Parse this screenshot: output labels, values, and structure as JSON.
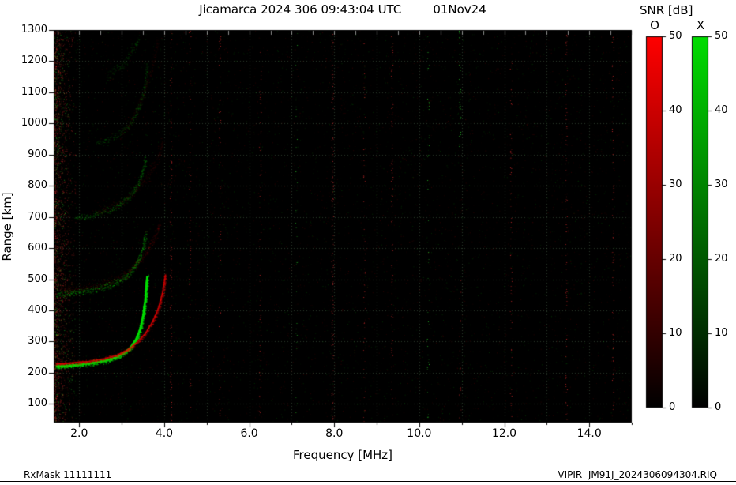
{
  "figure": {
    "title": "Jicamarca 2024 306 09:43:04 UTC",
    "date": "01Nov24",
    "footer_left": "RxMask 11111111",
    "footer_right": "VIPIR  JM91J_2024306094304.RIQ"
  },
  "chart_data": {
    "type": "heatmap",
    "title": "Jicamarca 2024 306 09:43:04 UTC 01Nov24",
    "xlabel": "Frequency [MHz]",
    "ylabel": "Range [km]",
    "xlim": [
      1.4,
      15.0
    ],
    "ylim": [
      40,
      1300
    ],
    "xtick_values": [
      2,
      4,
      6,
      8,
      10,
      12,
      14
    ],
    "xtick_labels": [
      "2.0",
      "4.0",
      "6.0",
      "8.0",
      "10.0",
      "12.0",
      "14.0"
    ],
    "yticks": [
      100,
      200,
      300,
      400,
      500,
      600,
      700,
      800,
      900,
      1000,
      1100,
      1200,
      1300
    ],
    "grid": true,
    "plot_background": "#000000",
    "colorbar_title": "SNR [dB]",
    "colorbar_ticks": [
      0,
      10,
      20,
      30,
      40,
      50
    ],
    "colorbars": [
      {
        "label": "O",
        "top_color": "#ff0000",
        "range": [
          0,
          50
        ]
      },
      {
        "label": "X",
        "top_color": "#00dd00",
        "range": [
          0,
          50
        ]
      }
    ],
    "series": [
      {
        "name": "X-mode 1st hop",
        "mode": "X",
        "color": "#00e000",
        "alpha": 0.9,
        "spread_km": 10,
        "density": 6,
        "core": true,
        "core_width": 2.4,
        "points": [
          [
            1.45,
            220
          ],
          [
            1.7,
            222
          ],
          [
            2.0,
            226
          ],
          [
            2.3,
            231
          ],
          [
            2.6,
            238
          ],
          [
            2.85,
            248
          ],
          [
            3.05,
            262
          ],
          [
            3.2,
            280
          ],
          [
            3.33,
            305
          ],
          [
            3.43,
            338
          ],
          [
            3.5,
            380
          ],
          [
            3.55,
            430
          ],
          [
            3.58,
            480
          ],
          [
            3.6,
            510
          ]
        ]
      },
      {
        "name": "O-mode 1st hop",
        "mode": "O",
        "color": "#e80000",
        "alpha": 0.6,
        "spread_km": 8,
        "density": 4,
        "core": true,
        "core_width": 1.6,
        "points": [
          [
            1.45,
            228
          ],
          [
            1.8,
            231
          ],
          [
            2.2,
            236
          ],
          [
            2.6,
            245
          ],
          [
            2.9,
            257
          ],
          [
            3.15,
            274
          ],
          [
            3.35,
            296
          ],
          [
            3.55,
            325
          ],
          [
            3.72,
            362
          ],
          [
            3.86,
            405
          ],
          [
            3.96,
            455
          ],
          [
            4.03,
            515
          ]
        ]
      },
      {
        "name": "X-mode 2nd hop",
        "mode": "X",
        "color": "#00cc00",
        "alpha": 0.5,
        "spread_km": 14,
        "density": 3,
        "core": false,
        "points": [
          [
            1.45,
            452
          ],
          [
            1.8,
            456
          ],
          [
            2.15,
            462
          ],
          [
            2.5,
            472
          ],
          [
            2.8,
            486
          ],
          [
            3.05,
            505
          ],
          [
            3.25,
            530
          ],
          [
            3.4,
            562
          ],
          [
            3.5,
            600
          ],
          [
            3.56,
            645
          ]
        ]
      },
      {
        "name": "O-mode 2nd hop",
        "mode": "O",
        "color": "#cc0000",
        "alpha": 0.22,
        "spread_km": 16,
        "density": 2.5,
        "core": false,
        "points": [
          [
            1.6,
            465
          ],
          [
            2.1,
            472
          ],
          [
            2.6,
            486
          ],
          [
            3.0,
            508
          ],
          [
            3.3,
            540
          ],
          [
            3.55,
            580
          ],
          [
            3.75,
            630
          ],
          [
            3.9,
            680
          ]
        ]
      },
      {
        "name": "X-mode 3rd hop",
        "mode": "X",
        "color": "#00bb00",
        "alpha": 0.4,
        "spread_km": 14,
        "density": 2.5,
        "core": false,
        "points": [
          [
            1.9,
            695
          ],
          [
            2.3,
            705
          ],
          [
            2.65,
            720
          ],
          [
            2.95,
            740
          ],
          [
            3.2,
            768
          ],
          [
            3.38,
            805
          ],
          [
            3.5,
            850
          ],
          [
            3.56,
            890
          ]
        ]
      },
      {
        "name": "O-mode 3rd hop",
        "mode": "O",
        "color": "#bb0000",
        "alpha": 0.17,
        "spread_km": 20,
        "density": 2,
        "core": false,
        "points": [
          [
            2.4,
            715
          ],
          [
            2.9,
            740
          ],
          [
            3.3,
            780
          ],
          [
            3.6,
            830
          ],
          [
            3.85,
            890
          ],
          [
            3.95,
            940
          ]
        ]
      },
      {
        "name": "X-mode 4th hop",
        "mode": "X",
        "color": "#00aa00",
        "alpha": 0.3,
        "spread_km": 16,
        "density": 2,
        "core": false,
        "points": [
          [
            2.4,
            935
          ],
          [
            2.8,
            955
          ],
          [
            3.1,
            985
          ],
          [
            3.3,
            1020
          ],
          [
            3.45,
            1070
          ],
          [
            3.55,
            1130
          ],
          [
            3.6,
            1190
          ]
        ]
      },
      {
        "name": "X-mode 5th hop",
        "mode": "X",
        "color": "#00aa00",
        "alpha": 0.25,
        "spread_km": 18,
        "density": 2,
        "core": false,
        "points": [
          [
            2.65,
            1150
          ],
          [
            2.9,
            1175
          ],
          [
            3.1,
            1205
          ],
          [
            3.3,
            1245
          ],
          [
            3.4,
            1280
          ]
        ]
      },
      {
        "name": "O-mode high-order diffuse",
        "mode": "O",
        "color": "#aa0000",
        "alpha": 0.13,
        "spread_km": 22,
        "density": 2,
        "core": false,
        "points": [
          [
            3.0,
            960
          ],
          [
            3.3,
            1030
          ],
          [
            3.55,
            1110
          ],
          [
            3.75,
            1200
          ],
          [
            3.85,
            1270
          ]
        ]
      }
    ],
    "rfi_stripes": [
      {
        "f": 4.15,
        "color": "#ff3333",
        "alpha": 0.1
      },
      {
        "f": 4.6,
        "color": "#ff3333",
        "alpha": 0.06
      },
      {
        "f": 5.3,
        "color": "#ff3333",
        "alpha": 0.05
      },
      {
        "f": 6.25,
        "color": "#ff3333",
        "alpha": 0.05
      },
      {
        "f": 7.1,
        "color": "#33ff33",
        "alpha": 0.04
      },
      {
        "f": 7.95,
        "color": "#ff4444",
        "alpha": 0.13
      },
      {
        "f": 8.7,
        "color": "#ff3333",
        "alpha": 0.06
      },
      {
        "f": 9.35,
        "color": "#ff3333",
        "alpha": 0.09
      },
      {
        "f": 10.2,
        "color": "#33ff33",
        "alpha": 0.05
      },
      {
        "f": 10.95,
        "color": "#33ff33",
        "alpha": 0.11,
        "r0": 900,
        "r1": 1300
      },
      {
        "f": 10.95,
        "color": "#ff3333",
        "alpha": 0.05,
        "r0": 40,
        "r1": 500
      },
      {
        "f": 12.15,
        "color": "#ff3333",
        "alpha": 0.06
      },
      {
        "f": 13.45,
        "color": "#ff3333",
        "alpha": 0.08
      },
      {
        "f": 14.55,
        "color": "#ff3333",
        "alpha": 0.06
      }
    ]
  }
}
